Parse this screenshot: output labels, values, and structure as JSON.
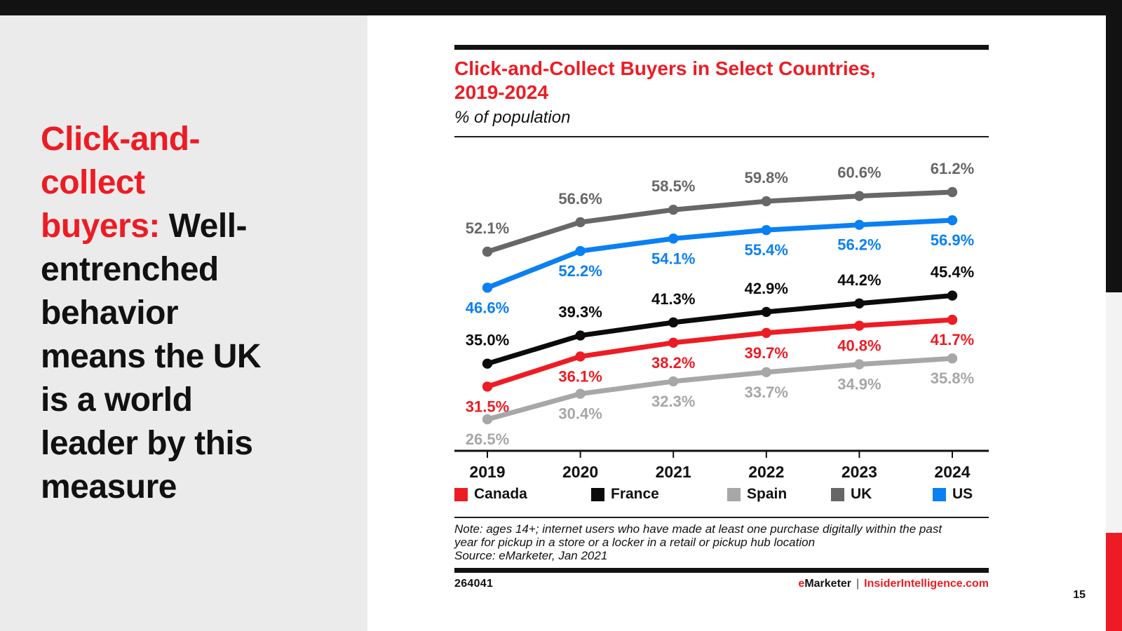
{
  "slide": {
    "headline_red": "Click-and-\ncollect\nbuyers:",
    "headline_black": "Well-\nentrenched\nbehavior\nmeans the UK\nis a world\nleader by this\nmeasure",
    "page_number": "15"
  },
  "panel": {
    "title": "Click-and-Collect Buyers in Select Countries,\n2019-2024",
    "subtitle": "% of population",
    "note": "Note: ages 14+; internet users who have made at least one purchase digitally within the past\nyear for pickup in a store or a locker in a retail or pickup hub location",
    "source": "Source: eMarketer, Jan 2021",
    "chart_id": "264041",
    "brand_prefix": "e",
    "brand_name": "Marketer",
    "brand_divider": "|",
    "brand_site": "InsiderIntelligence.com"
  },
  "colors": {
    "accent_red": "#ed1c24",
    "bar_black": "#121212",
    "left_panel_gray": "#ebebeb",
    "strip_light_gray": "#f3f3f4",
    "axis_black": "#111111"
  },
  "chart_data": {
    "type": "line",
    "title": "Click-and-Collect Buyers in Select Countries, 2019-2024",
    "subtitle": "% of population",
    "categories": [
      "2019",
      "2020",
      "2021",
      "2022",
      "2023",
      "2024"
    ],
    "series": [
      {
        "name": "Canada",
        "color": "#ed1c24",
        "values": [
          31.5,
          36.1,
          38.2,
          39.7,
          40.8,
          41.7
        ],
        "label_position": "below"
      },
      {
        "name": "France",
        "color": "#0b0b0b",
        "values": [
          35.0,
          39.3,
          41.3,
          42.9,
          44.2,
          45.4
        ],
        "label_position": "above"
      },
      {
        "name": "Spain",
        "color": "#a7a7a7",
        "values": [
          26.5,
          30.4,
          32.3,
          33.7,
          34.9,
          35.8
        ],
        "label_position": "below"
      },
      {
        "name": "UK",
        "color": "#676767",
        "values": [
          52.1,
          56.6,
          58.5,
          59.8,
          60.6,
          61.2
        ],
        "label_position": "above"
      },
      {
        "name": "US",
        "color": "#0a80f2",
        "values": [
          46.6,
          52.2,
          54.1,
          55.4,
          56.2,
          56.9
        ],
        "label_position": "below"
      }
    ],
    "label_format": "percent_one_decimal",
    "xlabel": "",
    "ylabel": "% of population",
    "ylim": [
      24,
      66
    ],
    "grid": false,
    "legend_position": "bottom"
  }
}
